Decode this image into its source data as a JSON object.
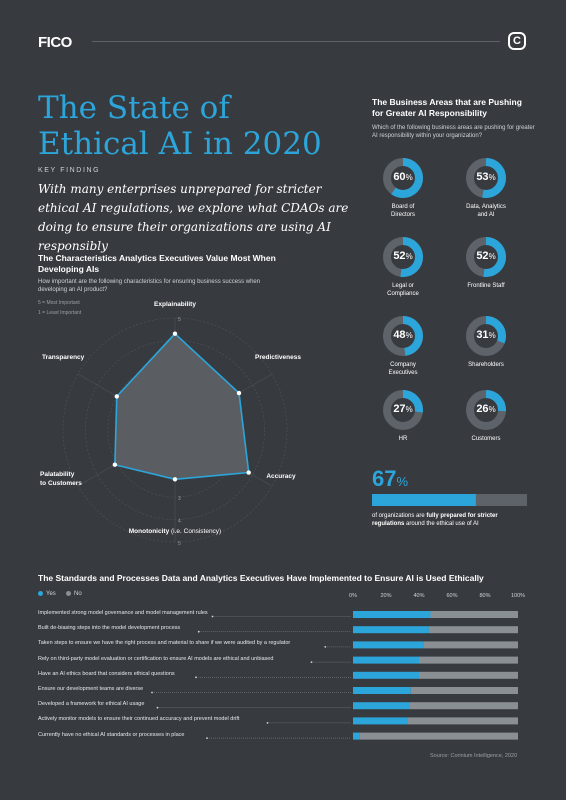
{
  "header": {
    "brand": "FICO",
    "badge": "C"
  },
  "title": "The State of Ethical AI in 2020",
  "key_finding": {
    "label": "KEY FINDING",
    "text": "With many enterprises unprepared for stricter ethical AI regulations, we explore what CDAOs are doing to ensure their organizations are using AI responsibly"
  },
  "radar": {
    "title": "The Characteristics Analytics Executives Value Most When Developing AIs",
    "subtitle": "How important are the following characteristics for ensuring business success when developing an AI product?",
    "legend_top": "5 = Most Important",
    "legend_bottom": "1 = Least Important",
    "axis_labels": [
      "Explainability",
      "Predictiveness",
      "Accuracy",
      "Monotonicity",
      "Palatability to Customers",
      "Transparency"
    ],
    "monotonicity_note": "(i.e. Consistency)"
  },
  "donuts": {
    "title": "The Business Areas that are Pushing for Greater AI Responsibility",
    "subtitle": "Which of the following business areas are pushing for greater AI responsibility within your organization?"
  },
  "stat": {
    "value": "67",
    "unit": "%",
    "text_prefix": "of organizations are ",
    "text_bold": "fully prepared for stricter regulations",
    "text_suffix": " around the ethical use of AI",
    "fill": 0.67
  },
  "bars": {
    "title": "The Standards and Processes Data and Analytics Executives Have Implemented to Ensure AI is Used Ethically",
    "legend_yes": "Yes",
    "legend_no": "No"
  },
  "source": "Source: Corinium Intelligence, 2020",
  "colors": {
    "accent": "#2ca6da",
    "track": "#5e6369",
    "bg": "#373b40"
  },
  "chart_data": [
    {
      "type": "radar",
      "title": "The Characteristics Analytics Executives Value Most When Developing AIs",
      "axes": [
        "Explainability",
        "Predictiveness",
        "Accuracy",
        "Monotonicity",
        "Palatability to Customers",
        "Transparency"
      ],
      "values": [
        4.3,
        3.3,
        3.8,
        2.2,
        3.1,
        3.0
      ],
      "range": [
        1,
        5
      ],
      "ticks": [
        1,
        2,
        3,
        4,
        5
      ]
    },
    {
      "type": "pie",
      "title": "The Business Areas that are Pushing for Greater AI Responsibility",
      "categories": [
        "Board of Directors",
        "Data, Analytics and AI",
        "Legal or Compliance",
        "Frontline Staff",
        "Company Executives",
        "Shareholders",
        "HR",
        "Customers"
      ],
      "values": [
        60,
        53,
        52,
        52,
        48,
        31,
        27,
        26
      ]
    },
    {
      "type": "bar",
      "title": "The Standards and Processes Data and Analytics Executives Have Implemented to Ensure AI is Used Ethically",
      "categories": [
        "Implemented strong model governance and model management rules",
        "Built de-biasing steps into the model development process",
        "Taken steps to ensure we have the right process and material to share if we were audited by a regulator",
        "Rely on third-party model evaluation or certification to ensure AI models are ethical and unbiased",
        "Have an AI ethics board that considers ethical questions",
        "Ensure our development teams are diverse",
        "Developed a framework for ethical AI usage",
        "Actively monitor models to ensure their continued accuracy and prevent model drift",
        "Currently have no ethical AI standards or processes in place"
      ],
      "series": [
        {
          "name": "Yes",
          "values": [
            47,
            46,
            43,
            40,
            40,
            35,
            34,
            33,
            4
          ]
        },
        {
          "name": "No",
          "values": [
            53,
            54,
            57,
            60,
            60,
            65,
            66,
            67,
            96
          ]
        }
      ],
      "ticks": [
        "0%",
        "20%",
        "40%",
        "60%",
        "80%",
        "100%"
      ],
      "xlim": [
        0,
        100
      ]
    }
  ]
}
